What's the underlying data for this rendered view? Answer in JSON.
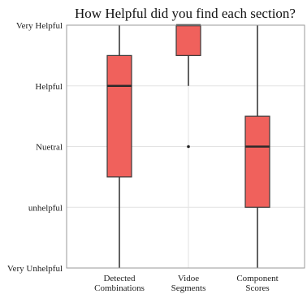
{
  "chart_data": {
    "type": "box",
    "title": "How Helpful did you find each section?",
    "xlabel": "",
    "ylabel": "",
    "y_levels": [
      "Very Unhelpful",
      "unhelpful",
      "Nuetral",
      "Helpful",
      "Very Helpful"
    ],
    "ylim": [
      1,
      5
    ],
    "grid": true,
    "box_color": "#f0615c",
    "categories": [
      {
        "label_lines": [
          "Detected",
          "Combinations"
        ],
        "whisker_low": 1,
        "q1": 2.5,
        "median": 4,
        "q3": 4.5,
        "whisker_high": 5,
        "outliers": []
      },
      {
        "label_lines": [
          "Vidoe",
          "Segments"
        ],
        "whisker_low": 4,
        "q1": 4.5,
        "median": 5,
        "q3": 5,
        "whisker_high": 5,
        "outliers": [
          3
        ]
      },
      {
        "label_lines": [
          "Component",
          "Scores"
        ],
        "whisker_low": 1,
        "q1": 2,
        "median": 3,
        "q3": 3.5,
        "whisker_high": 5,
        "outliers": []
      }
    ]
  }
}
